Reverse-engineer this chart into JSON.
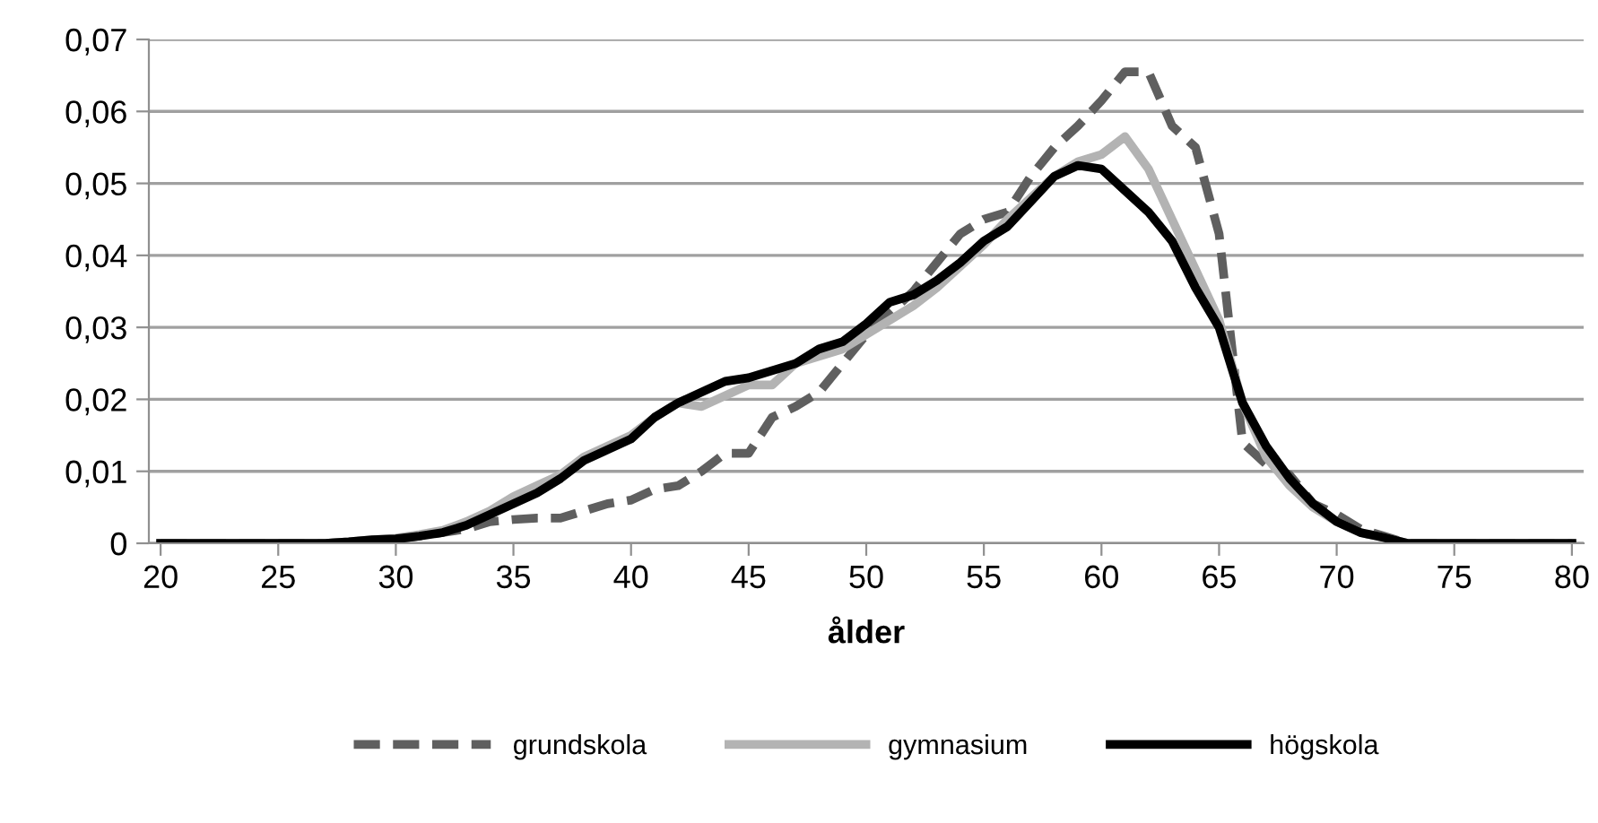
{
  "chart_data": {
    "type": "line",
    "xlabel": "ålder",
    "x": [
      20,
      21,
      22,
      23,
      24,
      25,
      26,
      27,
      28,
      29,
      30,
      31,
      32,
      33,
      34,
      35,
      36,
      37,
      38,
      39,
      40,
      41,
      42,
      43,
      44,
      45,
      46,
      47,
      48,
      49,
      50,
      51,
      52,
      53,
      54,
      55,
      56,
      57,
      58,
      59,
      60,
      61,
      62,
      63,
      64,
      65,
      66,
      67,
      68,
      69,
      70,
      71,
      72,
      73,
      74,
      75,
      76,
      77,
      78,
      79,
      80
    ],
    "series": [
      {
        "name": "grundskola",
        "color": "#5f5f5f",
        "line_style": "dashed",
        "values": [
          0,
          0,
          0,
          0,
          0,
          0,
          0,
          0,
          0.0002,
          0.0004,
          0.0006,
          0.001,
          0.0015,
          0.002,
          0.003,
          0.0033,
          0.0035,
          0.0035,
          0.0045,
          0.0055,
          0.006,
          0.0075,
          0.008,
          0.01,
          0.0125,
          0.0125,
          0.0175,
          0.019,
          0.021,
          0.025,
          0.029,
          0.032,
          0.035,
          0.039,
          0.043,
          0.045,
          0.046,
          0.051,
          0.055,
          0.058,
          0.0615,
          0.0655,
          0.0655,
          0.058,
          0.055,
          0.043,
          0.014,
          0.011,
          0.0095,
          0.0055,
          0.004,
          0.002,
          0.001,
          0,
          0,
          0,
          0,
          0,
          0,
          0,
          0
        ]
      },
      {
        "name": "gymnasium",
        "color": "#b3b3b3",
        "line_style": "solid",
        "values": [
          0,
          0,
          0,
          0,
          0,
          0,
          0,
          0,
          0.0002,
          0.0005,
          0.0007,
          0.0012,
          0.0018,
          0.003,
          0.0045,
          0.0065,
          0.008,
          0.0095,
          0.012,
          0.0135,
          0.015,
          0.0175,
          0.0195,
          0.019,
          0.0205,
          0.022,
          0.022,
          0.025,
          0.026,
          0.027,
          0.029,
          0.031,
          0.033,
          0.0355,
          0.0385,
          0.0415,
          0.045,
          0.048,
          0.051,
          0.053,
          0.054,
          0.0565,
          0.052,
          0.045,
          0.038,
          0.031,
          0.0195,
          0.012,
          0.008,
          0.005,
          0.003,
          0.0015,
          0.0008,
          0,
          0,
          0,
          0,
          0,
          0,
          0,
          0
        ]
      },
      {
        "name": "högskola",
        "color": "#000000",
        "line_style": "solid",
        "values": [
          0,
          0,
          0,
          0,
          0,
          0,
          0,
          0,
          0.0002,
          0.0005,
          0.0006,
          0.001,
          0.0015,
          0.0025,
          0.004,
          0.0055,
          0.007,
          0.009,
          0.0115,
          0.013,
          0.0145,
          0.0175,
          0.0195,
          0.021,
          0.0225,
          0.023,
          0.024,
          0.025,
          0.027,
          0.028,
          0.0305,
          0.0335,
          0.0345,
          0.0365,
          0.039,
          0.042,
          0.044,
          0.0475,
          0.051,
          0.0525,
          0.052,
          0.049,
          0.046,
          0.042,
          0.0355,
          0.03,
          0.0195,
          0.0135,
          0.009,
          0.0055,
          0.003,
          0.0015,
          0.0008,
          0,
          0,
          0,
          0,
          0,
          0,
          0,
          0
        ]
      }
    ],
    "xlim": [
      19.5,
      80.5
    ],
    "xticks": [
      20,
      25,
      30,
      35,
      40,
      45,
      50,
      55,
      60,
      65,
      70,
      75,
      80
    ],
    "ylim": [
      0,
      0.07
    ],
    "yticks": [
      {
        "value": 0,
        "label": "0"
      },
      {
        "value": 0.01,
        "label": "0,01"
      },
      {
        "value": 0.02,
        "label": "0,02"
      },
      {
        "value": 0.03,
        "label": "0,03"
      },
      {
        "value": 0.04,
        "label": "0,04"
      },
      {
        "value": 0.05,
        "label": "0,05"
      },
      {
        "value": 0.06,
        "label": "0,06"
      },
      {
        "value": 0.07,
        "label": "0,07"
      }
    ],
    "grid": "y",
    "legend": "bottom",
    "marker": "none"
  }
}
